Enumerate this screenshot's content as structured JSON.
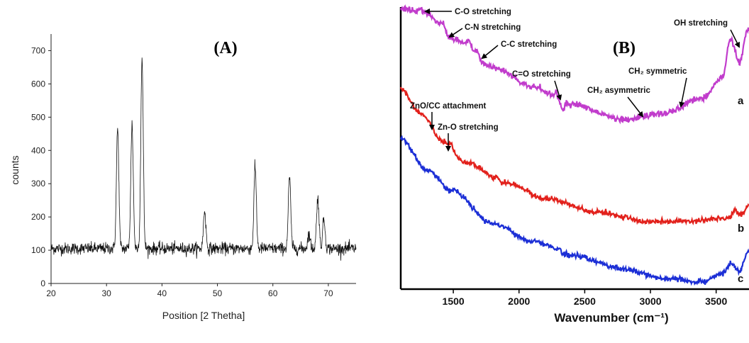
{
  "chart_data": [
    {
      "type": "line",
      "panel_label": "(A)",
      "xlabel": "Position [2 Thetha]",
      "ylabel": "counts",
      "xlim": [
        20,
        75
      ],
      "ylim": [
        0,
        750
      ],
      "x_ticks": [
        "20",
        "30",
        "40",
        "50",
        "60",
        "70"
      ],
      "y_ticks": [
        "0",
        "100",
        "200",
        "300",
        "400",
        "500",
        "600",
        "700"
      ],
      "color": "#111111",
      "baseline": 105,
      "peaks": [
        {
          "x": 32.0,
          "y": 465
        },
        {
          "x": 34.6,
          "y": 480
        },
        {
          "x": 36.4,
          "y": 675
        },
        {
          "x": 47.7,
          "y": 220
        },
        {
          "x": 56.8,
          "y": 350
        },
        {
          "x": 63.0,
          "y": 318
        },
        {
          "x": 66.5,
          "y": 150
        },
        {
          "x": 68.1,
          "y": 260
        },
        {
          "x": 69.2,
          "y": 195
        }
      ]
    },
    {
      "type": "line",
      "panel_label": "(B)",
      "xlabel": "Wavenumber (cm⁻¹)",
      "xlim": [
        1100,
        3750
      ],
      "x_ticks": [
        "1500",
        "2000",
        "2500",
        "3000",
        "3500"
      ],
      "series": [
        {
          "name": "a",
          "color": "#c13ccc"
        },
        {
          "name": "b",
          "color": "#e2211c"
        },
        {
          "name": "c",
          "color": "#1c2fd6"
        }
      ],
      "annotations": [
        "C-O stretching",
        "C-N stretching",
        "C-C stretching",
        "C=O stretching",
        "CH₂ symmetric",
        "CH₂ asymmetric",
        "OH stretching",
        "ZnO/CC attachment",
        "Zn-O stretching"
      ]
    }
  ]
}
